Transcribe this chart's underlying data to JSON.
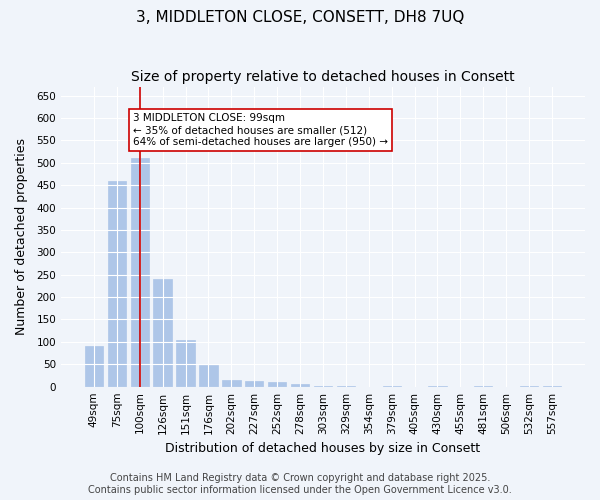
{
  "title": "3, MIDDLETON CLOSE, CONSETT, DH8 7UQ",
  "subtitle": "Size of property relative to detached houses in Consett",
  "xlabel": "Distribution of detached houses by size in Consett",
  "ylabel": "Number of detached properties",
  "categories": [
    "49sqm",
    "75sqm",
    "100sqm",
    "126sqm",
    "151sqm",
    "176sqm",
    "202sqm",
    "227sqm",
    "252sqm",
    "278sqm",
    "303sqm",
    "329sqm",
    "354sqm",
    "379sqm",
    "405sqm",
    "430sqm",
    "455sqm",
    "481sqm",
    "506sqm",
    "532sqm",
    "557sqm"
  ],
  "values": [
    90,
    460,
    510,
    240,
    105,
    48,
    15,
    13,
    10,
    7,
    2,
    2,
    0,
    2,
    0,
    1,
    0,
    1,
    0,
    1,
    2
  ],
  "bar_color": "#aec6e8",
  "bar_edge_color": "#aec6e8",
  "vline_x": 2,
  "vline_color": "#cc0000",
  "annotation_text": "3 MIDDLETON CLOSE: 99sqm\n← 35% of detached houses are smaller (512)\n64% of semi-detached houses are larger (950) →",
  "annotation_box_color": "#ffffff",
  "annotation_box_edge": "#cc0000",
  "ylim": [
    0,
    670
  ],
  "yticks": [
    0,
    50,
    100,
    150,
    200,
    250,
    300,
    350,
    400,
    450,
    500,
    550,
    600,
    650
  ],
  "background_color": "#f0f4fa",
  "plot_bg_color": "#f0f4fa",
  "footer": "Contains HM Land Registry data © Crown copyright and database right 2025.\nContains public sector information licensed under the Open Government Licence v3.0.",
  "title_fontsize": 11,
  "subtitle_fontsize": 10,
  "xlabel_fontsize": 9,
  "ylabel_fontsize": 9,
  "tick_fontsize": 7.5,
  "footer_fontsize": 7
}
